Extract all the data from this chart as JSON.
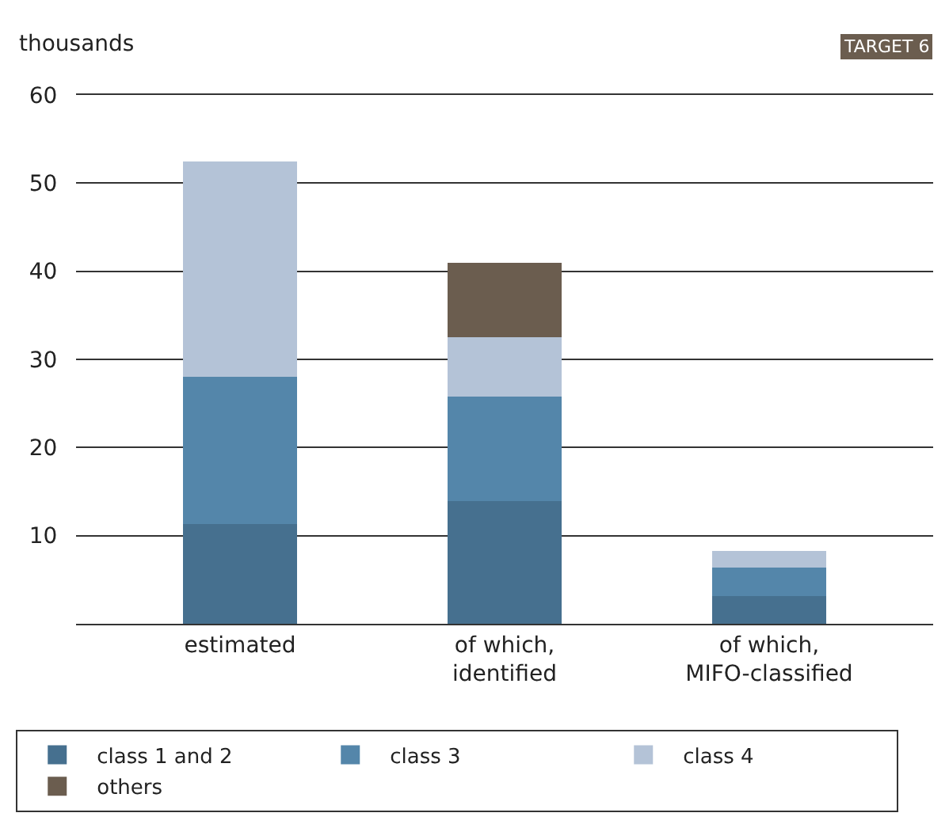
{
  "chart_data": {
    "type": "bar",
    "stacked": true,
    "ylabel": "thousands",
    "annotations": [
      "TARGET 6"
    ],
    "categories": [
      "estimated",
      "of which,\nidentified",
      "of which,\nMIFO-classified"
    ],
    "series": [
      {
        "name": "class 1 and 2",
        "color": "#46708f",
        "values": [
          11.3,
          13.9,
          3.1
        ]
      },
      {
        "name": "class 3",
        "color": "#5486aa",
        "values": [
          16.7,
          11.9,
          3.3
        ]
      },
      {
        "name": "class 4",
        "color": "#b4c3d7",
        "values": [
          24.5,
          6.7,
          1.9
        ]
      },
      {
        "name": "others",
        "color": "#6b5d4f",
        "values": [
          null,
          8.5,
          null
        ]
      }
    ],
    "ylim": [
      0,
      60
    ],
    "yticks": [
      {
        "value": 0,
        "label": null
      },
      10,
      20,
      30,
      40,
      50,
      60
    ],
    "grid": "y",
    "legend": "bottom"
  }
}
